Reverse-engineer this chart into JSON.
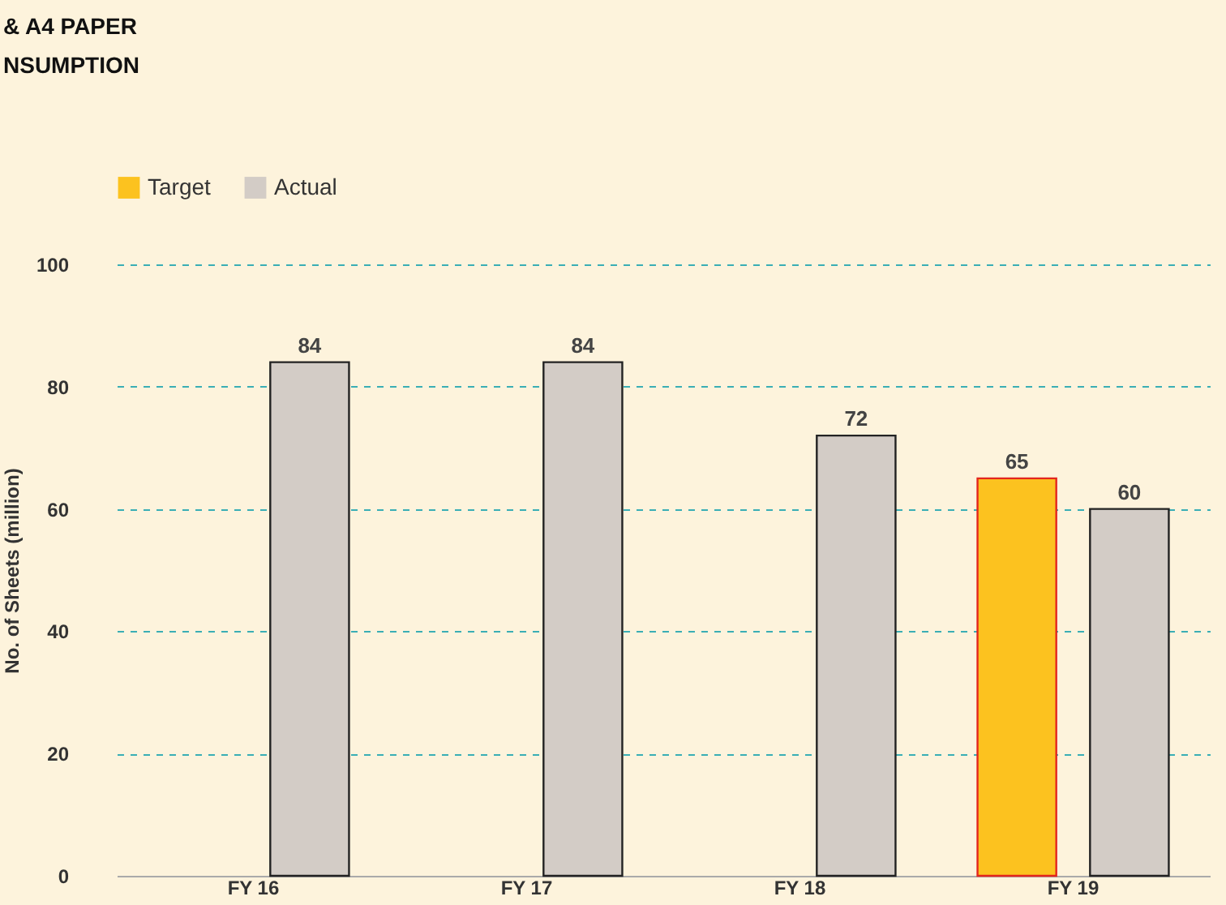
{
  "chart_data": {
    "type": "bar",
    "title": [
      "& A4 PAPER",
      "NSUMPTION"
    ],
    "ylabel": "No. of Sheets (million)",
    "categories": [
      "FY 16",
      "FY 17",
      "FY 18",
      "FY 19"
    ],
    "series": [
      {
        "name": "Target",
        "color": "#fcc21f",
        "values": [
          null,
          null,
          null,
          65
        ]
      },
      {
        "name": "Actual",
        "color": "#d3ccc6",
        "values": [
          84,
          84,
          72,
          60
        ]
      }
    ],
    "ylim": [
      0,
      100
    ],
    "yticks": [
      0,
      20,
      40,
      60,
      80,
      100
    ],
    "grid": "y",
    "legend": "top left",
    "data_labels": true
  }
}
